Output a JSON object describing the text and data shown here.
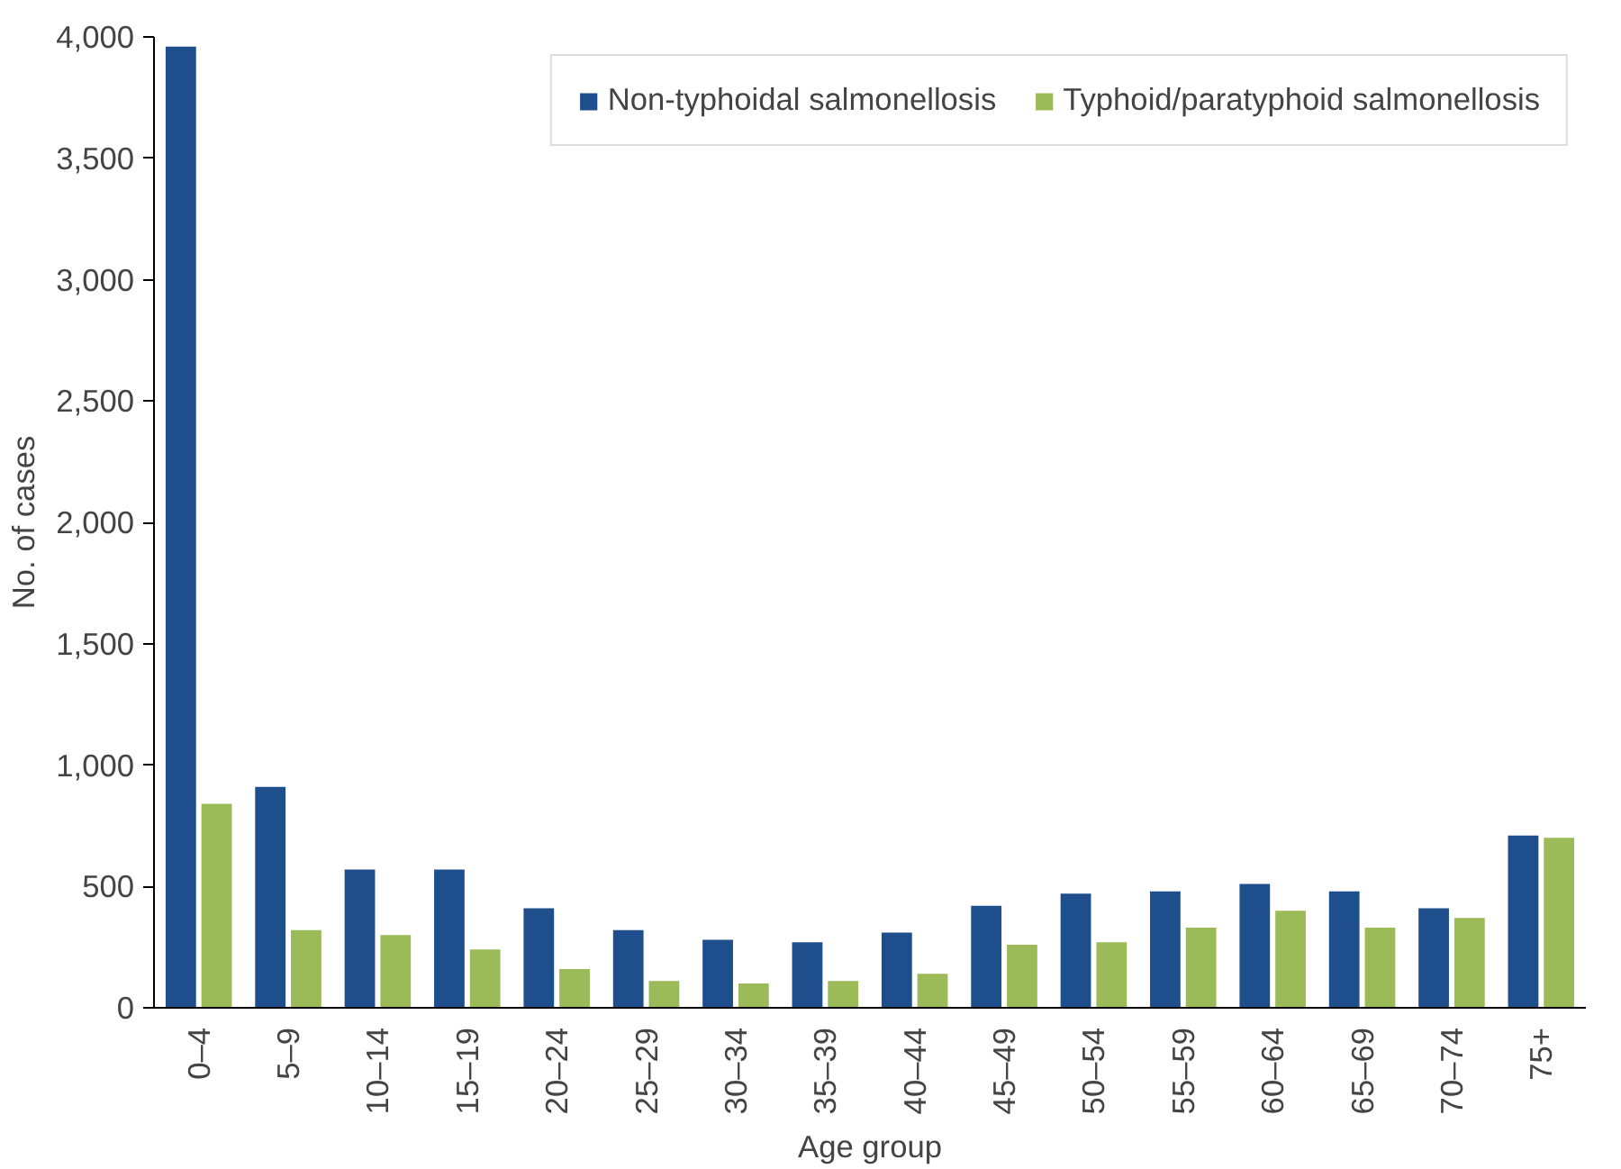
{
  "chart_data": {
    "type": "bar",
    "xlabel": "Age group",
    "ylabel": "No. of cases",
    "categories": [
      "0–4",
      "5–9",
      "10–14",
      "15–19",
      "20–24",
      "25–29",
      "30–34",
      "35–39",
      "40–44",
      "45–49",
      "50–54",
      "55–59",
      "60–64",
      "65–69",
      "70–74",
      "75+"
    ],
    "series": [
      {
        "name": "Non-typhoidal salmonellosis",
        "color": "#1f4e8c",
        "values": [
          3960,
          910,
          570,
          570,
          410,
          320,
          280,
          270,
          310,
          420,
          470,
          480,
          510,
          480,
          410,
          710
        ]
      },
      {
        "name": "Typhoid/paratyphoid salmonellosis",
        "color": "#9bbb59",
        "values": [
          840,
          320,
          300,
          240,
          160,
          110,
          100,
          110,
          140,
          260,
          270,
          330,
          400,
          330,
          370,
          700
        ]
      }
    ],
    "ylim": [
      0,
      4000
    ],
    "yticks": [
      {
        "value": 0,
        "label": "0"
      },
      {
        "value": 500,
        "label": "500"
      },
      {
        "value": 1000,
        "label": "1,000"
      },
      {
        "value": 1500,
        "label": "1,500"
      },
      {
        "value": 2000,
        "label": "2,000"
      },
      {
        "value": 2500,
        "label": "2,500"
      },
      {
        "value": 3000,
        "label": "3,000"
      },
      {
        "value": 3500,
        "label": "3,500"
      },
      {
        "value": 4000,
        "label": "4,000"
      }
    ],
    "grid": false,
    "legend": "top right"
  }
}
